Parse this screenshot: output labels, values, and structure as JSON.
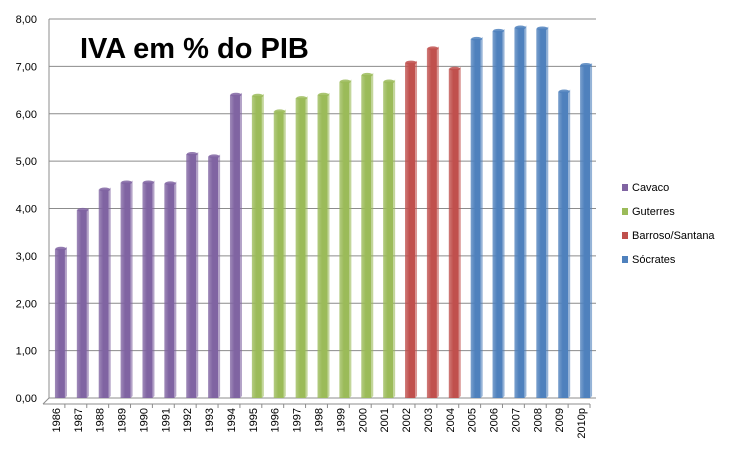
{
  "chart_data": {
    "type": "bar",
    "title": "IVA em % do PIB",
    "xlabel": "",
    "ylabel": "",
    "ylim": [
      0,
      8
    ],
    "yticks": [
      "0,00",
      "1,00",
      "2,00",
      "3,00",
      "4,00",
      "5,00",
      "6,00",
      "7,00",
      "8,00"
    ],
    "grid": true,
    "legend_position": "right",
    "categories": [
      "1986",
      "1987",
      "1988",
      "1989",
      "1990",
      "1991",
      "1992",
      "1993",
      "1994",
      "1995",
      "1996",
      "1997",
      "1998",
      "1999",
      "2000",
      "2001",
      "2002",
      "2003",
      "2004",
      "2005",
      "2006",
      "2007",
      "2008",
      "2009",
      "2010p"
    ],
    "values": [
      3.15,
      3.97,
      4.4,
      4.55,
      4.55,
      4.53,
      5.15,
      5.1,
      6.4,
      6.38,
      6.05,
      6.33,
      6.4,
      6.68,
      6.82,
      6.68,
      7.08,
      7.38,
      6.95,
      7.58,
      7.75,
      7.82,
      7.8,
      6.47,
      7.03
    ],
    "groups": [
      "Cavaco",
      "Cavaco",
      "Cavaco",
      "Cavaco",
      "Cavaco",
      "Cavaco",
      "Cavaco",
      "Cavaco",
      "Cavaco",
      "Guterres",
      "Guterres",
      "Guterres",
      "Guterres",
      "Guterres",
      "Guterres",
      "Guterres",
      "Barroso/Santana",
      "Barroso/Santana",
      "Barroso/Santana",
      "Sócrates",
      "Sócrates",
      "Sócrates",
      "Sócrates",
      "Sócrates",
      "Sócrates"
    ],
    "series": [
      {
        "name": "Cavaco",
        "color": "#8064a2"
      },
      {
        "name": "Guterres",
        "color": "#9bbb59"
      },
      {
        "name": "Barroso/Santana",
        "color": "#c0504d"
      },
      {
        "name": "Sócrates",
        "color": "#4f81bd"
      }
    ]
  }
}
